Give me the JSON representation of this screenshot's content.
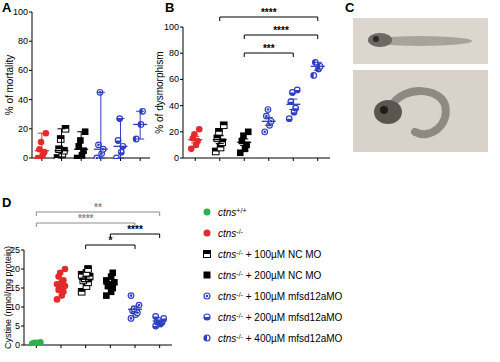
{
  "figure": {
    "panel_c": "C"
  },
  "legend": {
    "entries": [
      {
        "name": "ctns+/+",
        "color": "#2bb24c",
        "marker": "circle"
      },
      {
        "name": "ctns-/-",
        "color": "#e32b2b",
        "marker": "circle"
      },
      {
        "name": "ctns-/- + 100µM NC MO",
        "color": "#000000",
        "marker": "square-half"
      },
      {
        "name": "ctns-/- + 200µM NC MO",
        "color": "#000000",
        "marker": "square"
      },
      {
        "name": "ctns-/- + 100µM mfsd12aMO",
        "color": "#2f3fbf",
        "marker": "circle-dot"
      },
      {
        "name": "ctns-/- + 200µM mfsd12aMO",
        "color": "#2f3fbf",
        "marker": "circle-half"
      },
      {
        "name": "ctns-/- + 400µM mfsd12aMO",
        "color": "#2f3fbf",
        "marker": "circle-half-left"
      }
    ]
  },
  "chart_data": [
    {
      "type": "scatter",
      "title": "A",
      "y_label": "% of mortality",
      "ylim": [
        0,
        100
      ],
      "yticks": [
        0,
        20,
        40,
        60,
        80,
        100
      ],
      "tick_labels": "y",
      "series": [
        {
          "color": "#e32b2b",
          "marker": "circle",
          "values": [
            0,
            2,
            4,
            6,
            11,
            17
          ],
          "center": 5,
          "low": 0,
          "high": 17
        },
        {
          "color": "#000000",
          "marker": "square-half",
          "values": [
            0,
            3,
            5,
            6,
            13,
            20
          ],
          "center": 5,
          "low": 0,
          "high": 20
        },
        {
          "color": "#000000",
          "marker": "square",
          "values": [
            0,
            2,
            5,
            8,
            12,
            18
          ],
          "center": 6,
          "low": 0,
          "high": 18
        },
        {
          "color": "#2f3fbf",
          "marker": "circle-dot",
          "values": [
            0,
            3,
            6,
            9,
            45
          ],
          "center": 6,
          "low": 0,
          "high": 45
        },
        {
          "color": "#2f3fbf",
          "marker": "circle-half",
          "values": [
            0,
            4,
            8,
            12,
            27
          ],
          "center": 8,
          "low": 0,
          "high": 27
        },
        {
          "color": "#2f3fbf",
          "marker": "circle-half-left",
          "values": [
            13,
            23,
            32
          ],
          "center": 23,
          "low": 13,
          "high": 32
        }
      ],
      "comparisons": []
    },
    {
      "type": "scatter",
      "title": "B",
      "y_label": "% of dysmorphism",
      "ylim": [
        0,
        100
      ],
      "yticks": [
        0,
        20,
        40,
        60,
        80,
        100
      ],
      "tick_labels": "y",
      "series": [
        {
          "color": "#e32b2b",
          "marker": "circle",
          "values": [
            7,
            10,
            13,
            15,
            18,
            22
          ],
          "center": 14,
          "low": 11.5,
          "high": 16.5
        },
        {
          "color": "#000000",
          "marker": "square-half",
          "values": [
            5,
            8,
            12,
            15,
            20,
            25
          ],
          "center": 14,
          "low": 11,
          "high": 17
        },
        {
          "color": "#000000",
          "marker": "square",
          "values": [
            4,
            7,
            10,
            13,
            17,
            20
          ],
          "center": 12,
          "low": 9.5,
          "high": 14.5
        },
        {
          "color": "#2f3fbf",
          "marker": "circle-dot",
          "values": [
            20,
            25,
            28,
            32,
            37
          ],
          "center": 28,
          "low": 25,
          "high": 31
        },
        {
          "color": "#2f3fbf",
          "marker": "circle-half",
          "values": [
            30,
            35,
            38,
            43,
            50,
            52
          ],
          "center": 41,
          "low": 37,
          "high": 45
        },
        {
          "color": "#2f3fbf",
          "marker": "circle-half-left",
          "values": [
            63,
            68,
            70,
            73
          ],
          "center": 70,
          "low": 67,
          "high": 73
        }
      ],
      "comparisons": [
        {
          "from": 1,
          "to": 5,
          "label": "****",
          "color": "#000000"
        },
        {
          "from": 2,
          "to": 5,
          "label": "****",
          "color": "#000000"
        },
        {
          "from": 2,
          "to": 4,
          "label": "***",
          "color": "#000000"
        }
      ]
    },
    {
      "type": "scatter",
      "title": "D",
      "y_label": "Cystine (nmol/mg protein)",
      "ylim": [
        0,
        25
      ],
      "yticks": [
        0,
        5,
        10,
        15,
        20,
        25
      ],
      "tick_labels": "y",
      "series": [
        {
          "color": "#2bb24c",
          "marker": "circle",
          "values": [
            0.2,
            0.3,
            0.4,
            0.5,
            0.6,
            0.7,
            0.3,
            0.4,
            0.5,
            0.2
          ],
          "center": 0.4,
          "low": 0.3,
          "high": 0.5
        },
        {
          "color": "#e32b2b",
          "marker": "circle",
          "values": [
            12,
            13,
            14,
            14.5,
            15,
            15.5,
            16,
            16.5,
            17,
            18,
            19,
            20
          ],
          "center": 15.8,
          "low": 15.1,
          "high": 16.5
        },
        {
          "color": "#000000",
          "marker": "square-half",
          "values": [
            14,
            15.5,
            16.5,
            17,
            17.5,
            18,
            18.5,
            19,
            20
          ],
          "center": 17.3,
          "low": 16.7,
          "high": 17.9
        },
        {
          "color": "#000000",
          "marker": "square",
          "values": [
            13,
            14,
            15,
            15.5,
            16,
            16.5,
            17,
            18,
            19
          ],
          "center": 16,
          "low": 15.4,
          "high": 16.6
        },
        {
          "color": "#2f3fbf",
          "marker": "circle-dot",
          "values": [
            7,
            8,
            8.5,
            9,
            9.5,
            10.5,
            13
          ],
          "center": 9.4,
          "low": 8.6,
          "high": 10.2
        },
        {
          "color": "#2f3fbf",
          "marker": "circle-half",
          "values": [
            5,
            5.5,
            6,
            6,
            6.5,
            7,
            7.5
          ],
          "center": 6.3,
          "low": 6,
          "high": 6.6
        }
      ],
      "comparisons": [
        {
          "from": 0,
          "to": 5,
          "label": "**",
          "color": "#8c8c8c"
        },
        {
          "from": 0,
          "to": 4,
          "label": "****",
          "color": "#8c8c8c"
        },
        {
          "from": 3,
          "to": 5,
          "label": "****",
          "color": "#000000"
        },
        {
          "from": 2,
          "to": 4,
          "label": "*",
          "color": "#000000"
        }
      ]
    }
  ]
}
